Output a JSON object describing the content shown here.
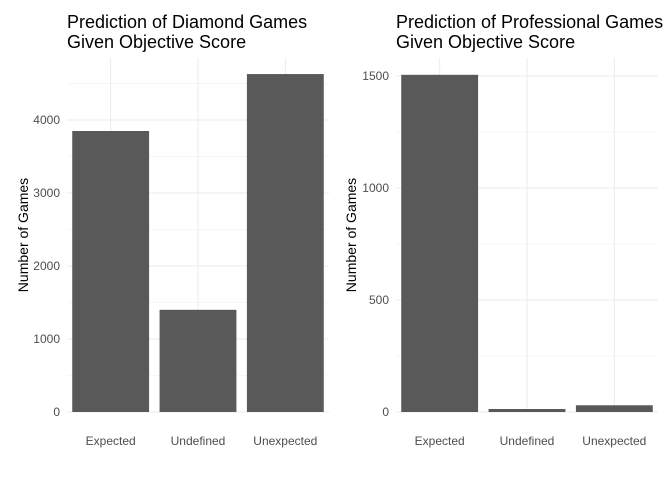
{
  "chart_data": [
    {
      "type": "bar",
      "title": [
        "Prediction of Diamond Games",
        "Given Objective Score"
      ],
      "ylabel": "Number of Games",
      "xlabel": "",
      "categories": [
        "Expected",
        "Undefined",
        "Unexpected"
      ],
      "values": [
        3850,
        1400,
        4630
      ],
      "yticks": [
        0,
        1000,
        2000,
        3000,
        4000
      ],
      "ylim": [
        0,
        4850
      ],
      "bar_color": "#595959",
      "grid": true
    },
    {
      "type": "bar",
      "title": [
        "Prediction of Professional Games",
        "Given Objective Score"
      ],
      "ylabel": "Number of Games",
      "xlabel": "",
      "categories": [
        "Expected",
        "Undefined",
        "Unexpected"
      ],
      "values": [
        1505,
        12,
        30
      ],
      "yticks": [
        0,
        500,
        1000,
        1500
      ],
      "ylim": [
        0,
        1580
      ],
      "bar_color": "#595959",
      "grid": true
    }
  ]
}
